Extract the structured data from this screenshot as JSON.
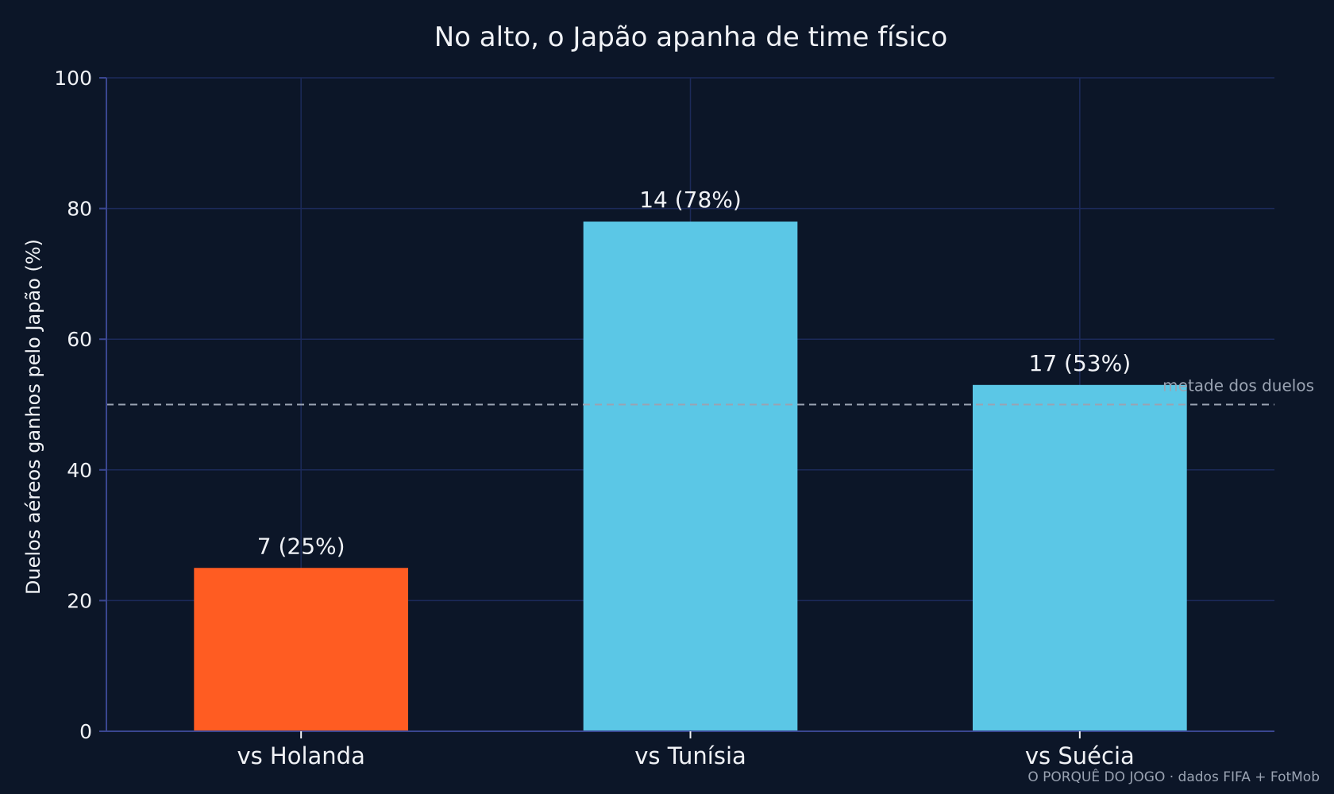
{
  "chart_data": {
    "type": "bar",
    "title": "No alto, o Japão apanha de time físico",
    "xlabel": "",
    "ylabel": "Duelos aéreos ganhos pelo Japão (%)",
    "categories": [
      "vs Holanda",
      "vs Tunísia",
      "vs Suécia"
    ],
    "values": [
      25,
      78,
      53
    ],
    "data_labels": [
      "7 (25%)",
      "14 (78%)",
      "17 (53%)"
    ],
    "bar_colors": [
      "#ff5c22",
      "#5bc7e6",
      "#5bc7e6"
    ],
    "ylim": [
      0,
      100
    ],
    "yticks": [
      "0",
      "20",
      "40",
      "60",
      "80",
      "100"
    ],
    "grid": true,
    "reference_line": {
      "value": 50,
      "label": "metade dos duelos",
      "color": "#9aa3b2"
    },
    "source": "O PORQUÊ DO JOGO · dados FIFA + FotMob",
    "colors": {
      "background": "#0c1628",
      "grid": "#1c2a5a",
      "axis": "#3a4690",
      "text": "#f0f2f6",
      "muted": "#9aa3b2"
    }
  }
}
